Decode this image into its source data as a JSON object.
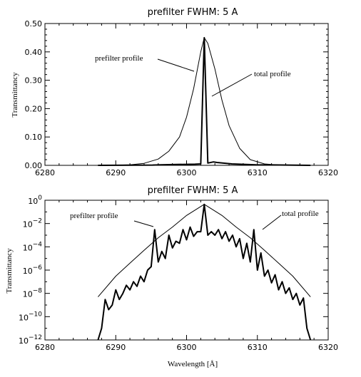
{
  "chart_data": [
    {
      "type": "line",
      "title": "prefilter FWHM: 5 A",
      "xlabel": "",
      "ylabel": "Transmittancy",
      "xlim": [
        6280,
        6320
      ],
      "ylim": [
        0,
        0.5
      ],
      "x_ticks": [
        "6280",
        "6290",
        "6300",
        "6310",
        "6320"
      ],
      "y_ticks": [
        "0.00",
        "0.10",
        "0.20",
        "0.30",
        "0.40",
        "0.50"
      ],
      "y_scale": "linear",
      "grid": false,
      "annotations": [
        "prefilter profile",
        "total profile"
      ],
      "series": [
        {
          "name": "prefilter profile",
          "x": [
            6287.5,
            6290,
            6292,
            6294,
            6296,
            6297.5,
            6299,
            6300,
            6301,
            6302,
            6302.5,
            6303,
            6304,
            6305,
            6306,
            6307.5,
            6309,
            6311,
            6313,
            6315,
            6317.5
          ],
          "y": [
            0.0,
            0.0005,
            0.002,
            0.007,
            0.022,
            0.05,
            0.1,
            0.17,
            0.27,
            0.4,
            0.45,
            0.43,
            0.34,
            0.23,
            0.14,
            0.06,
            0.02,
            0.005,
            0.001,
            0.0002,
            0.0
          ]
        },
        {
          "name": "total profile",
          "x": [
            6287.5,
            6295.2,
            6296.4,
            6298.6,
            6301.2,
            6302.0,
            6302.5,
            6303.0,
            6303.8,
            6304.3,
            6306.4,
            6309.8,
            6317.5
          ],
          "y": [
            0.0,
            0.001,
            0.002,
            0.003,
            0.004,
            0.005,
            0.45,
            0.008,
            0.012,
            0.01,
            0.005,
            0.002,
            0.0
          ]
        }
      ]
    },
    {
      "type": "line",
      "title": "prefilter FWHM: 5 A",
      "xlabel": "Wavelength [Å]",
      "ylabel": "Transmittancy",
      "xlim": [
        6280,
        6320
      ],
      "ylim": [
        1e-12,
        1
      ],
      "x_ticks": [
        "6280",
        "6290",
        "6300",
        "6310",
        "6320"
      ],
      "y_ticks": [
        {
          "base": "10",
          "exp": "0"
        },
        {
          "base": "10",
          "exp": "−2"
        },
        {
          "base": "10",
          "exp": "−4"
        },
        {
          "base": "10",
          "exp": "−6"
        },
        {
          "base": "10",
          "exp": "−8"
        },
        {
          "base": "10",
          "exp": "−10"
        },
        {
          "base": "10",
          "exp": "−12"
        }
      ],
      "y_tick_values": [
        1,
        0.01,
        0.0001,
        1e-06,
        1e-08,
        1e-10,
        1e-12
      ],
      "y_scale": "log",
      "grid": false,
      "annotations": [
        "prefilter profile",
        "total profile"
      ],
      "series": [
        {
          "name": "prefilter profile",
          "x": [
            6287.5,
            6290,
            6292,
            6294,
            6296,
            6298,
            6300,
            6302.5,
            6305,
            6307,
            6309,
            6311,
            6313,
            6315,
            6317.5
          ],
          "y": [
            5e-09,
            3e-07,
            4e-06,
            5e-05,
            0.0006,
            0.005,
            0.05,
            0.45,
            0.05,
            0.005,
            0.0006,
            5e-05,
            4e-06,
            3e-07,
            5e-09
          ]
        },
        {
          "name": "total profile",
          "x": [
            6287.5,
            6288.0,
            6288.5,
            6289.0,
            6289.5,
            6290.0,
            6290.5,
            6291.0,
            6291.5,
            6292.0,
            6292.5,
            6293.0,
            6293.5,
            6294.0,
            6294.5,
            6295.0,
            6295.5,
            6296.0,
            6296.5,
            6297.0,
            6297.5,
            6298.0,
            6298.5,
            6299.0,
            6299.5,
            6300.0,
            6300.5,
            6301.0,
            6301.5,
            6302.0,
            6302.5,
            6303.0,
            6303.5,
            6304.0,
            6304.5,
            6305.0,
            6305.5,
            6306.0,
            6306.5,
            6307.0,
            6307.5,
            6308.0,
            6308.5,
            6309.0,
            6309.5,
            6310.0,
            6310.5,
            6311.0,
            6311.5,
            6312.0,
            6312.5,
            6313.0,
            6313.5,
            6314.0,
            6314.5,
            6315.0,
            6315.5,
            6316.0,
            6316.5,
            6317.0,
            6317.5
          ],
          "y": [
            1e-12,
            1e-11,
            3e-09,
            4e-10,
            1e-09,
            2e-08,
            3e-09,
            1e-08,
            5e-08,
            2e-08,
            1e-07,
            4e-08,
            3e-07,
            1e-07,
            1e-06,
            2e-06,
            0.003,
            5e-06,
            4e-05,
            1e-05,
            0.001,
            8e-05,
            0.0003,
            0.0002,
            0.003,
            0.0004,
            0.005,
            0.0008,
            0.002,
            0.002,
            0.45,
            0.001,
            0.002,
            0.001,
            0.003,
            0.0005,
            0.002,
            0.0003,
            0.001,
            0.0001,
            0.0005,
            1e-05,
            0.0002,
            5e-06,
            0.003,
            1e-06,
            3e-05,
            3e-07,
            1e-06,
            8e-08,
            4e-07,
            2e-08,
            1e-07,
            1e-08,
            3e-08,
            3e-09,
            1e-08,
            1e-09,
            4e-09,
            1e-11,
            1e-12
          ]
        }
      ]
    }
  ]
}
